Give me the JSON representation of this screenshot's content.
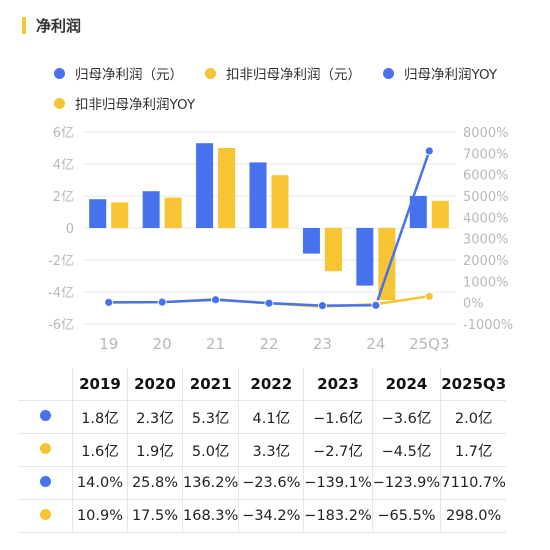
{
  "title": "净利润",
  "colors": {
    "blue": "#4672ee",
    "yellow": "#f7c433",
    "accent": "#f4c431",
    "grid": "#e9e9e9",
    "axis": "#b8b8b8"
  },
  "legend": [
    {
      "label": "归母净利润（元）",
      "color": "#4672ee"
    },
    {
      "label": "扣非归母净利润（元）",
      "color": "#f7c433"
    },
    {
      "label": "归母净利润YOY",
      "color": "#4672ee"
    },
    {
      "label": "扣非归母净利润YOY",
      "color": "#f7c433"
    }
  ],
  "chart_data": {
    "type": "bar",
    "categories": [
      "19",
      "20",
      "21",
      "22",
      "23",
      "24",
      "25Q3"
    ],
    "series": [
      {
        "name": "归母净利润（元）",
        "type": "bar",
        "axis": "left",
        "values": [
          1.8,
          2.3,
          5.3,
          4.1,
          -1.6,
          -3.6,
          2.0
        ]
      },
      {
        "name": "扣非归母净利润（元）",
        "type": "bar",
        "axis": "left",
        "values": [
          1.6,
          1.9,
          5.0,
          3.3,
          -2.7,
          -4.5,
          1.7
        ]
      },
      {
        "name": "归母净利润YOY",
        "type": "line",
        "axis": "right",
        "values": [
          14.0,
          25.8,
          136.2,
          -23.6,
          -139.1,
          -123.9,
          7110.7
        ]
      },
      {
        "name": "扣非归母净利润YOY",
        "type": "line",
        "axis": "right",
        "values": [
          10.9,
          17.5,
          168.3,
          -34.2,
          -183.2,
          -65.5,
          298.0
        ]
      }
    ],
    "left_axis": {
      "ticks": [
        "6亿",
        "4亿",
        "2亿",
        "0",
        "-2亿",
        "-4亿",
        "-6亿"
      ],
      "ylim": [
        -6,
        6
      ]
    },
    "right_axis": {
      "ticks": [
        "8000%",
        "7000%",
        "6000%",
        "5000%",
        "4000%",
        "3000%",
        "2000%",
        "1000%",
        "0%",
        "-1000%"
      ],
      "ylim": [
        -1000,
        8000
      ]
    },
    "grid": true
  },
  "table": {
    "headers": [
      "2019",
      "2020",
      "2021",
      "2022",
      "2023",
      "2024",
      "2025Q3"
    ],
    "rows": [
      {
        "color": "#4672ee",
        "cells": [
          "1.8亿",
          "2.3亿",
          "5.3亿",
          "4.1亿",
          "−1.6亿",
          "−3.6亿",
          "2.0亿"
        ]
      },
      {
        "color": "#f7c433",
        "cells": [
          "1.6亿",
          "1.9亿",
          "5.0亿",
          "3.3亿",
          "−2.7亿",
          "−4.5亿",
          "1.7亿"
        ]
      },
      {
        "color": "#4672ee",
        "cells": [
          "14.0%",
          "25.8%",
          "136.2%",
          "−23.6%",
          "−139.1%",
          "−123.9%",
          "7110.7%"
        ]
      },
      {
        "color": "#f7c433",
        "cells": [
          "10.9%",
          "17.5%",
          "168.3%",
          "−34.2%",
          "−183.2%",
          "−65.5%",
          "298.0%"
        ]
      }
    ]
  }
}
